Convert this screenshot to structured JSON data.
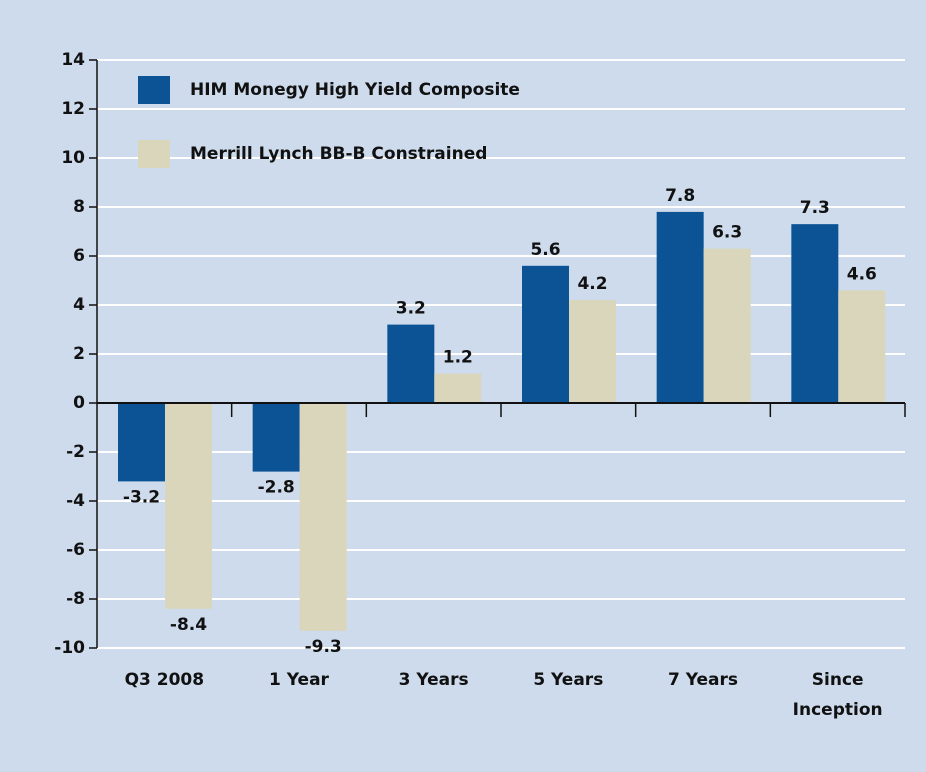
{
  "chart_data": {
    "type": "bar",
    "categories": [
      "Q3 2008",
      "1 Year",
      "3 Years",
      "5 Years",
      "7 Years",
      "Since Inception"
    ],
    "series": [
      {
        "name": "HIM Monegy High Yield Composite",
        "color": "#0b5394",
        "values": [
          -3.2,
          -2.8,
          3.2,
          5.6,
          7.8,
          7.3
        ]
      },
      {
        "name": "Merrill Lynch BB-B Constrained",
        "color": "#dad6bc",
        "values": [
          -8.4,
          -9.3,
          1.2,
          4.2,
          6.3,
          4.6
        ]
      }
    ],
    "ylim": [
      -10,
      14
    ],
    "yticks": [
      -10,
      -8,
      -6,
      -4,
      -2,
      0,
      2,
      4,
      6,
      8,
      10,
      12,
      14
    ],
    "grid": true,
    "legend": "top-left"
  }
}
